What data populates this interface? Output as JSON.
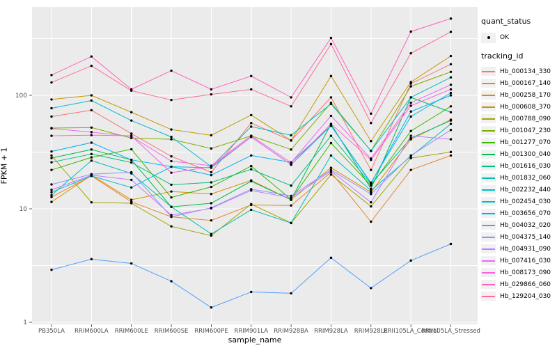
{
  "figure": {
    "background": "#FFFFFF",
    "panel_background": "#EBEBEB",
    "grid_color": "#FFFFFF",
    "axis_text_color": "#4D4D4D",
    "tick_color": "#333333",
    "marker_color": "#000000"
  },
  "legend": {
    "quant_status_title": "quant_status",
    "ok_label": "OK",
    "tracking_id_title": "tracking_id",
    "key_background": "#F1F1F1"
  },
  "chart_data": {
    "type": "line",
    "title": "",
    "xlabel": "sample_name",
    "ylabel": "FPKM + 1",
    "y_scale": "log10",
    "grid": true,
    "legend_position": "right",
    "y_ticks": [
      1,
      10,
      100
    ],
    "y_minor_gridlines": [
      3.162,
      31.62,
      316.2
    ],
    "ylim": [
      0.97,
      600
    ],
    "categories": [
      "PB350LA",
      "RRIM600LA",
      "RRIM600LE",
      "RRIM600SE",
      "RRIM600PE",
      "RRIM901LA",
      "RRIM928BA",
      "RRIM928LA",
      "RRIM928LE",
      "RRII105LA_Control",
      "RRII105LA_Stressed"
    ],
    "series": [
      {
        "name": "Hb_000134_330",
        "color": "#F8766D",
        "values": [
          65,
          74,
          46,
          29,
          21,
          57,
          40,
          96,
          22,
          127,
          188
        ]
      },
      {
        "name": "Hb_000167_140",
        "color": "#EA8331",
        "values": [
          12.7,
          19.5,
          11.5,
          8.5,
          7.9,
          10.8,
          10.7,
          21,
          7.7,
          22,
          29.5
        ]
      },
      {
        "name": "Hb_000258_170",
        "color": "#D89000",
        "values": [
          11.5,
          19.8,
          12,
          14.2,
          13.5,
          17.8,
          12,
          23,
          14,
          41,
          61
        ]
      },
      {
        "name": "Hb_000608_370",
        "color": "#C09B00",
        "values": [
          92,
          100,
          71,
          50,
          44.5,
          67,
          40,
          148,
          39.5,
          131,
          222
        ]
      },
      {
        "name": "Hb_000788_090",
        "color": "#A3A500",
        "values": [
          29.5,
          11.4,
          11.2,
          7.0,
          5.8,
          11,
          7.5,
          20,
          10.5,
          28,
          31.7
        ]
      },
      {
        "name": "Hb_001047_230",
        "color": "#7CAE00",
        "values": [
          51.5,
          52,
          42,
          41,
          34,
          44,
          33.3,
          86,
          32.4,
          120,
          161
        ]
      },
      {
        "name": "Hb_001277_070",
        "color": "#39B600",
        "values": [
          22,
          28.4,
          33.5,
          12.6,
          15.6,
          23.8,
          12.1,
          38,
          16,
          48.5,
          80
        ]
      },
      {
        "name": "Hb_001300_040",
        "color": "#00BB4E",
        "values": [
          28,
          33.3,
          27,
          10.4,
          11.2,
          17.5,
          12,
          56,
          15,
          96,
          71
        ]
      },
      {
        "name": "Hb_001616_030",
        "color": "#00BF7D",
        "values": [
          25.7,
          30.4,
          25.6,
          16.3,
          17.1,
          22.3,
          16,
          44,
          16.5,
          42,
          60
        ]
      },
      {
        "name": "Hb_001832_060",
        "color": "#00C0AF",
        "values": [
          13.2,
          26.6,
          20.5,
          10.4,
          6.0,
          9.8,
          7.5,
          29.5,
          14.5,
          29,
          56
        ]
      },
      {
        "name": "Hb_002232_440",
        "color": "#00BFC4",
        "values": [
          77,
          90,
          60,
          43,
          23.5,
          53,
          44.5,
          84,
          32.4,
          96,
          144
        ]
      },
      {
        "name": "Hb_002454_030",
        "color": "#00BCD8",
        "values": [
          14.0,
          19.5,
          15.4,
          23.5,
          23,
          43,
          24.5,
          54,
          17,
          65,
          105
        ]
      },
      {
        "name": "Hb_003656_070",
        "color": "#00B0F6",
        "values": [
          32,
          38.3,
          27,
          23.5,
          19.8,
          29.5,
          25.7,
          54,
          16.8,
          72,
          100
        ]
      },
      {
        "name": "Hb_004032_020",
        "color": "#529EFF",
        "values": [
          2.9,
          3.6,
          3.3,
          2.3,
          1.35,
          1.85,
          1.8,
          3.7,
          2.0,
          3.5,
          4.9
        ]
      },
      {
        "name": "Hb_004375_140",
        "color": "#9590FF",
        "values": [
          16.4,
          20.2,
          21,
          8.5,
          10.2,
          14.9,
          13,
          22,
          13.5,
          29.5,
          49.5
        ]
      },
      {
        "name": "Hb_004931_090",
        "color": "#C77CFF",
        "values": [
          14.7,
          19.8,
          18,
          8.8,
          10.1,
          14.5,
          12.5,
          21.5,
          11.4,
          44,
          41
        ]
      },
      {
        "name": "Hb_007416_030",
        "color": "#E76BF3",
        "values": [
          51,
          47.4,
          43.5,
          26.3,
          24,
          44,
          25.5,
          66,
          27.7,
          86,
          124
        ]
      },
      {
        "name": "Hb_008173_090",
        "color": "#FA62DB",
        "values": [
          44,
          44.6,
          44,
          20.8,
          23.5,
          43,
          24.5,
          56,
          27,
          81,
          113
        ]
      },
      {
        "name": "Hb_029866_060",
        "color": "#FF62BC",
        "values": [
          151,
          220,
          113,
          165,
          113,
          148,
          96,
          321,
          69,
          365,
          475
        ]
      },
      {
        "name": "Hb_129204_030",
        "color": "#FF6A98",
        "values": [
          130,
          182,
          110,
          91,
          102,
          113,
          80,
          283,
          57,
          235,
          363
        ]
      }
    ]
  }
}
